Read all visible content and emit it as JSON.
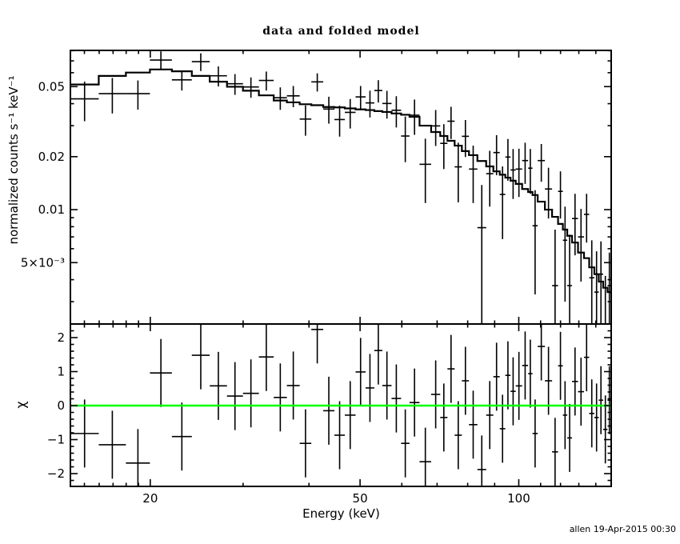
{
  "header": {
    "title": "data and folded model"
  },
  "footer": {
    "timestamp": "allen 19-Apr-2015 00:30"
  },
  "chart_data": {
    "type": "scatter",
    "style": "xspec two-panel: binned spectrum with stepped folded model (top) and chi residuals (bottom)",
    "title": "data and folded model",
    "xlabel": "Energy (keV)",
    "ylabel_top": "normalized counts s⁻¹ keV⁻¹",
    "ylabel_bottom": "χ",
    "x_scale": "log",
    "y_scale_top": "log",
    "y_scale_bottom": "linear",
    "xlim": [
      14.11,
      149.73
    ],
    "ylim_top": [
      0.00224,
      0.0803
    ],
    "ylim_bottom": [
      -2.376,
      2.4
    ],
    "grid": false,
    "legend": "none",
    "colors": {
      "data": "#000000",
      "model": "#000000",
      "zero_line": "#00ff00",
      "frame": "#000000",
      "background": "#ffffff"
    },
    "x_major_ticks": [
      {
        "value": 20,
        "label": "20"
      },
      {
        "value": 50,
        "label": "50"
      },
      {
        "value": 100,
        "label": "100"
      }
    ],
    "x_minor_ticks": [
      15,
      16,
      17,
      18,
      19,
      30,
      40,
      60,
      70,
      80,
      90,
      110,
      120,
      130,
      140
    ],
    "y_major_ticks_top": [
      {
        "value": 0.005,
        "label": "5×10⁻³"
      },
      {
        "value": 0.01,
        "label": "0.01"
      },
      {
        "value": 0.02,
        "label": "0.02"
      },
      {
        "value": 0.05,
        "label": "0.05"
      }
    ],
    "y_minor_ticks_top": [
      0.003,
      0.004,
      0.006,
      0.007,
      0.008,
      0.009,
      0.03,
      0.04,
      0.06,
      0.07,
      0.08
    ],
    "y_major_ticks_bottom": [
      {
        "value": -2,
        "label": "−2"
      },
      {
        "value": -1,
        "label": "−1"
      },
      {
        "value": 0,
        "label": "0"
      },
      {
        "value": 1,
        "label": "1"
      },
      {
        "value": 2,
        "label": "2"
      }
    ],
    "y_minor_ticks_bottom": [
      -2.2,
      -1.8,
      -1.6,
      -1.4,
      -1.2,
      -0.8,
      -0.6,
      -0.4,
      -0.2,
      0.2,
      0.4,
      0.6,
      0.8,
      1.2,
      1.4,
      1.6,
      1.8,
      2.2
    ],
    "zero_line_value": 0,
    "chi_error": 1,
    "bin_edges_kev": [
      14.11,
      15.97,
      17.98,
      19.97,
      21.98,
      23.98,
      25.93,
      27.96,
      29.98,
      32.14,
      34.29,
      36.32,
      38.41,
      40.41,
      42.57,
      44.7,
      46.78,
      49.03,
      51.22,
      53.21,
      55.1,
      57.37,
      59.81,
      62.05,
      64.83,
      68.2,
      70.96,
      73.23,
      75.57,
      77.99,
      80.45,
      83.47,
      86.73,
      89.49,
      92.03,
      94.29,
      96.46,
      98.67,
      101.48,
      104.17,
      106.18,
      108.62,
      112.09,
      115.66,
      118.72,
      121.23,
      123.58,
      126.19,
      129.53,
      132.96,
      136.01,
      139.12,
      141.81,
      144.56,
      147.36,
      149.73
    ],
    "series": {
      "data": [
        0.0426,
        0.0456,
        0.0456,
        0.0708,
        0.0546,
        0.0693,
        0.0576,
        0.0519,
        0.0498,
        0.0542,
        0.0432,
        0.0443,
        0.0327,
        0.0532,
        0.0373,
        0.0325,
        0.0357,
        0.0437,
        0.0404,
        0.0475,
        0.0401,
        0.0367,
        0.0262,
        0.0344,
        0.0181,
        0.0299,
        0.0238,
        0.0318,
        0.0175,
        0.0261,
        0.017,
        0.0079,
        0.016,
        0.0211,
        0.0122,
        0.0199,
        0.0168,
        0.017,
        0.019,
        0.0172,
        0.0081,
        0.019,
        0.0131,
        0.0037,
        0.0127,
        0.0067,
        0.0037,
        0.0089,
        0.007,
        0.0094,
        0.0041,
        0.0034,
        0.0043,
        0.0021,
        0.0037
      ],
      "error": [
        0.0108,
        0.0104,
        0.0086,
        0.0085,
        0.0071,
        0.008,
        0.0075,
        0.007,
        0.0066,
        0.0067,
        0.0063,
        0.0061,
        0.0064,
        0.0063,
        0.0065,
        0.0065,
        0.0068,
        0.0067,
        0.007,
        0.0069,
        0.0072,
        0.0074,
        0.0076,
        0.0078,
        0.0072,
        0.0069,
        0.0068,
        0.0066,
        0.0065,
        0.0062,
        0.0061,
        0.0059,
        0.0056,
        0.0054,
        0.0054,
        0.0053,
        0.0053,
        0.0052,
        0.005,
        0.0049,
        0.0048,
        0.0046,
        0.0042,
        0.004,
        0.0038,
        0.0037,
        0.0035,
        0.0034,
        0.0031,
        0.0029,
        0.0026,
        0.0024,
        0.0023,
        0.0021,
        0.002
      ],
      "model": [
        0.0514,
        0.0575,
        0.0601,
        0.0626,
        0.0611,
        0.0575,
        0.0533,
        0.0499,
        0.0474,
        0.0446,
        0.0417,
        0.0407,
        0.0397,
        0.0392,
        0.0383,
        0.0381,
        0.0376,
        0.0371,
        0.0368,
        0.0363,
        0.0359,
        0.0352,
        0.0346,
        0.0337,
        0.03,
        0.0276,
        0.0262,
        0.0246,
        0.0231,
        0.0215,
        0.0204,
        0.0189,
        0.0176,
        0.0165,
        0.0158,
        0.0152,
        0.0146,
        0.014,
        0.0131,
        0.0126,
        0.0121,
        0.0111,
        0.01,
        0.0091,
        0.0083,
        0.0077,
        0.0071,
        0.0065,
        0.0057,
        0.0053,
        0.0047,
        0.0043,
        0.0039,
        0.0036,
        0.0034
      ],
      "chi": [
        -0.82,
        -1.15,
        -1.69,
        0.96,
        -0.91,
        1.48,
        0.58,
        0.28,
        0.36,
        1.43,
        0.24,
        0.59,
        -1.11,
        2.24,
        -0.15,
        -0.87,
        -0.28,
        0.99,
        0.52,
        1.62,
        0.59,
        0.21,
        -1.11,
        0.09,
        -1.65,
        0.33,
        -0.35,
        1.08,
        -0.87,
        0.73,
        -0.56,
        -1.88,
        -0.28,
        0.85,
        -0.68,
        0.89,
        0.42,
        0.58,
        1.18,
        0.94,
        -0.82,
        1.74,
        0.73,
        -1.36,
        1.17,
        -0.28,
        -0.95,
        0.71,
        0.41,
        1.42,
        -0.23,
        -0.35,
        0.16,
        -0.7,
        0.16
      ]
    }
  }
}
